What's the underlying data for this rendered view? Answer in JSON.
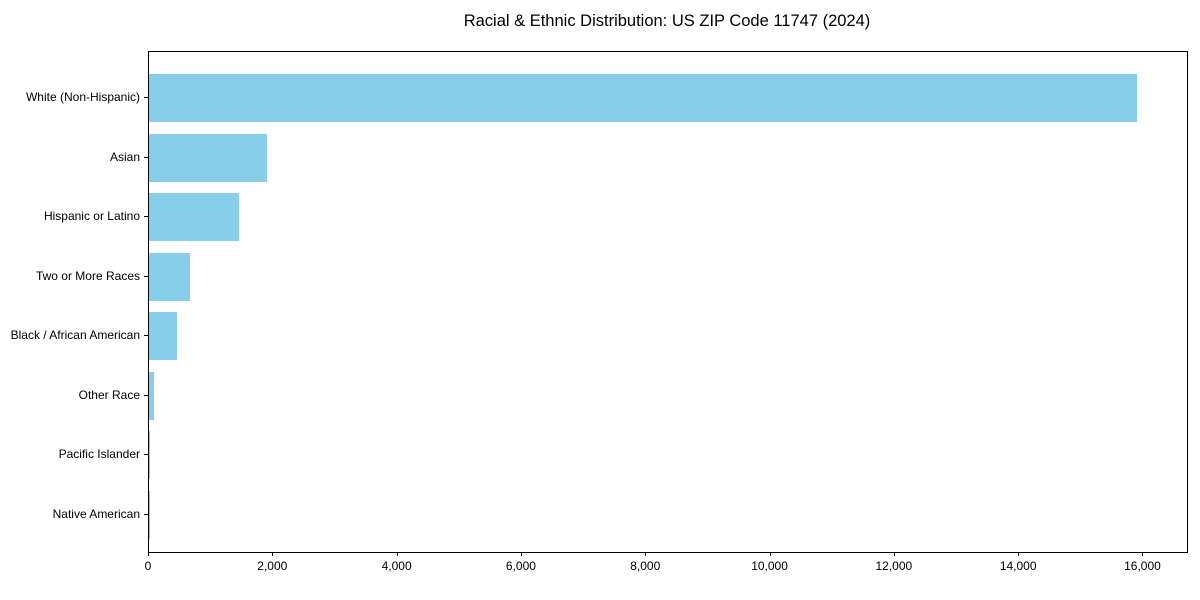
{
  "chart_data": {
    "type": "bar",
    "orientation": "horizontal",
    "title": "Racial & Ethnic Distribution: US ZIP Code 11747 (2024)",
    "categories": [
      "White (Non-Hispanic)",
      "Asian",
      "Hispanic or Latino",
      "Two or More Races",
      "Black / African American",
      "Other Race",
      "Pacific Islander",
      "Native American"
    ],
    "values": [
      15900,
      1900,
      1450,
      660,
      450,
      75,
      15,
      5
    ],
    "xlabel": "",
    "ylabel": "",
    "xlim": [
      0,
      16700
    ],
    "xticks": [
      0,
      2000,
      4000,
      6000,
      8000,
      10000,
      12000,
      14000,
      16000
    ],
    "xtick_labels": [
      "0",
      "2,000",
      "4,000",
      "6,000",
      "8,000",
      "10,000",
      "12,000",
      "14,000",
      "16,000"
    ],
    "grid": false,
    "legend": null,
    "bar_color": "#87CEEB",
    "frame_color": "#000000",
    "background_color": "#ffffff",
    "text_color": "#000000"
  }
}
